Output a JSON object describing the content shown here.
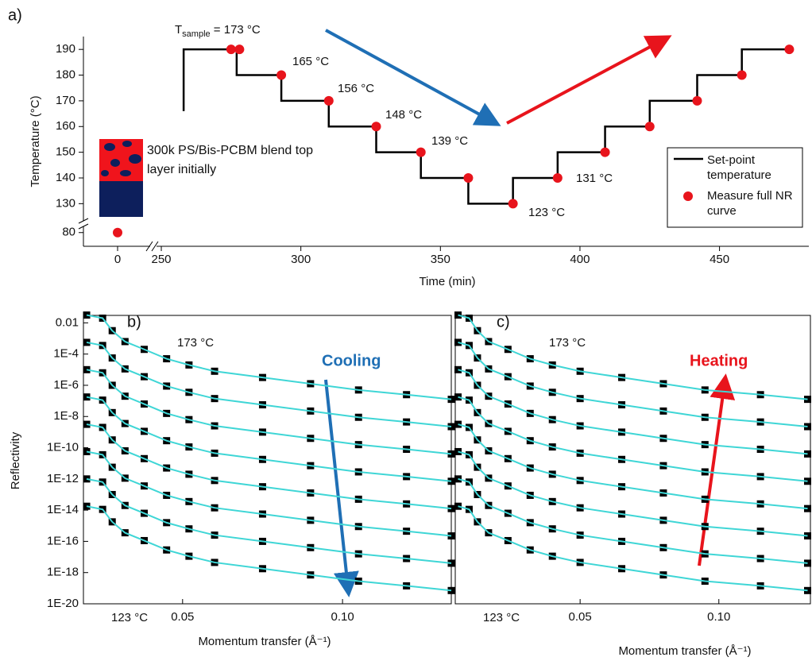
{
  "chart_data": [
    {
      "type": "step",
      "panel": "a)",
      "xlabel": "Time (min)",
      "ylabel": "Temperature (°C)",
      "xlim": [
        [
          -12,
          12
        ],
        [
          248,
          482
        ]
      ],
      "ylim": [
        [
          75,
          83
        ],
        [
          123,
          195
        ]
      ],
      "xticks": [
        0,
        250,
        300,
        350,
        400,
        450
      ],
      "yticks": [
        80,
        130,
        140,
        150,
        160,
        170,
        180,
        190
      ],
      "series": [
        {
          "name": "Set-point temperature",
          "color": "#000000",
          "x": [
            258,
            258,
            277,
            277,
            293,
            293,
            310,
            310,
            327,
            327,
            343,
            343,
            360,
            360,
            376,
            376,
            392,
            392,
            409,
            409,
            425,
            425,
            442,
            442,
            458,
            458,
            475
          ],
          "values": [
            166,
            190,
            190,
            180,
            180,
            170,
            170,
            160,
            160,
            150,
            150,
            140,
            140,
            130,
            130,
            140,
            140,
            150,
            150,
            160,
            160,
            170,
            170,
            180,
            180,
            190,
            190
          ]
        },
        {
          "name": "Measure full NR curve",
          "color": "#e8141c",
          "x": [
            0,
            275,
            278,
            293,
            310,
            327,
            343,
            360,
            376,
            392,
            409,
            425,
            442,
            458,
            475
          ],
          "values": [
            80,
            190,
            190,
            180,
            170,
            160,
            150,
            140,
            130,
            140,
            150,
            160,
            170,
            180,
            190
          ]
        }
      ],
      "sample_label": {
        "main": "T",
        "sub": "sample",
        "rest": " = 173 °C"
      },
      "annotations": [
        "165 °C",
        "156 °C",
        "148 °C",
        "139 °C",
        "123 °C",
        "131 °C"
      ],
      "inset": "300k PS/Bis-PCBM blend top layer initially"
    },
    {
      "type": "line",
      "panel": "b)",
      "xlabel": "Momentum transfer (Å⁻¹)",
      "ylabel": "Reflectivity",
      "ylog": true,
      "marker_color": "#000000",
      "line_color": "#3fd6d6",
      "xlim": [
        0.019,
        0.134
      ],
      "ylim": [
        1e-20,
        0.03
      ],
      "xticks": [
        0.05,
        {
          "value": 0.1,
          "label": "0.10"
        }
      ],
      "yticks": [
        0.01,
        {
          "value": 0.0001,
          "label": "1E-4"
        },
        {
          "value": 1e-06,
          "label": "1E-6"
        },
        {
          "value": 1e-08,
          "label": "1E-8"
        },
        {
          "value": 1e-10,
          "label": "1E-10"
        },
        {
          "value": 1e-12,
          "label": "1E-12"
        },
        {
          "value": 1e-14,
          "label": "1E-14"
        },
        {
          "value": 1e-16,
          "label": "1E-16"
        },
        {
          "value": 1e-18,
          "label": "1E-18"
        },
        {
          "value": 1e-20,
          "label": "1E-20"
        }
      ],
      "x": [
        0.02,
        0.025,
        0.028,
        0.032,
        0.038,
        0.045,
        0.052,
        0.06,
        0.075,
        0.09,
        0.105,
        0.12,
        0.134
      ],
      "series": [
        {
          "values": [
            0.0316,
            0.02,
            0.00316,
            0.000631,
            0.0002,
            5.01e-05,
            2e-05,
            7.94e-06,
            3.16e-06,
            1.26e-06,
            5.01e-07,
            2.51e-07,
            1.26e-07
          ]
        },
        {
          "values": [
            0.000562,
            0.000355,
            5.62e-05,
            1.12e-05,
            3.55e-06,
            8.91e-07,
            3.55e-07,
            1.41e-07,
            5.62e-08,
            2.24e-08,
            8.91e-09,
            4.47e-09,
            2.24e-09
          ]
        },
        {
          "values": [
            1e-05,
            6.31e-06,
            1e-06,
            2e-07,
            6.31e-08,
            1.58e-08,
            6.31e-09,
            2.51e-09,
            1e-09,
            3.98e-10,
            1.58e-10,
            7.94e-11,
            3.98e-11
          ]
        },
        {
          "values": [
            1.78e-07,
            1.12e-07,
            1.78e-08,
            3.55e-09,
            1.12e-09,
            2.82e-10,
            1.12e-10,
            4.47e-11,
            1.78e-11,
            7.08e-12,
            2.82e-12,
            1.41e-12,
            7.08e-13
          ]
        },
        {
          "values": [
            3.16e-09,
            2e-09,
            3.16e-10,
            6.31e-11,
            2e-11,
            5.01e-12,
            2e-12,
            7.94e-13,
            3.16e-13,
            1.26e-13,
            5.01e-14,
            2.51e-14,
            1.26e-14
          ]
        },
        {
          "values": [
            5.62e-11,
            3.55e-11,
            5.62e-12,
            1.12e-12,
            3.55e-13,
            8.91e-14,
            3.55e-14,
            1.41e-14,
            5.62e-15,
            2.24e-15,
            8.91e-16,
            4.47e-16,
            2.24e-16
          ]
        },
        {
          "values": [
            1e-12,
            6.31e-13,
            1e-13,
            2e-14,
            6.31e-15,
            1.58e-15,
            6.31e-16,
            2.51e-16,
            1e-16,
            3.98e-17,
            1.58e-17,
            7.94e-18,
            3.98e-18
          ]
        },
        {
          "values": [
            1.78e-14,
            1.12e-14,
            1.78e-15,
            3.55e-16,
            1.12e-16,
            2.82e-17,
            1.12e-17,
            4.47e-18,
            1.78e-18,
            7.08e-19,
            2.82e-19,
            1.41e-19,
            7.08e-20
          ]
        }
      ],
      "annotations": [
        "173 °C",
        "123 °C",
        "Cooling"
      ]
    },
    {
      "type": "line",
      "panel": "c)",
      "xlabel": "Momentum transfer (Å⁻¹)",
      "ylog": true,
      "marker_color": "#000000",
      "line_color": "#3fd6d6",
      "xlim": [
        0.005,
        0.133
      ],
      "ylim": [
        1e-20,
        0.03
      ],
      "xticks": [
        0.05,
        {
          "value": 0.1,
          "label": "0.10"
        }
      ],
      "x": [
        0.006,
        0.01,
        0.013,
        0.017,
        0.024,
        0.032,
        0.04,
        0.05,
        0.065,
        0.08,
        0.095,
        0.115,
        0.132
      ],
      "series": [
        {
          "values": [
            0.0316,
            0.02,
            0.00316,
            0.000631,
            0.0002,
            5.01e-05,
            2e-05,
            7.94e-06,
            3.16e-06,
            1.26e-06,
            5.01e-07,
            2.51e-07,
            1.26e-07
          ]
        },
        {
          "values": [
            0.000562,
            0.000355,
            5.62e-05,
            1.12e-05,
            3.55e-06,
            8.91e-07,
            3.55e-07,
            1.41e-07,
            5.62e-08,
            2.24e-08,
            8.91e-09,
            4.47e-09,
            2.24e-09
          ]
        },
        {
          "values": [
            1e-05,
            6.31e-06,
            1e-06,
            2e-07,
            6.31e-08,
            1.58e-08,
            6.31e-09,
            2.51e-09,
            1e-09,
            3.98e-10,
            1.58e-10,
            7.94e-11,
            3.98e-11
          ]
        },
        {
          "values": [
            1.78e-07,
            1.12e-07,
            1.78e-08,
            3.55e-09,
            1.12e-09,
            2.82e-10,
            1.12e-10,
            4.47e-11,
            1.78e-11,
            7.08e-12,
            2.82e-12,
            1.41e-12,
            7.08e-13
          ]
        },
        {
          "values": [
            3.16e-09,
            2e-09,
            3.16e-10,
            6.31e-11,
            2e-11,
            5.01e-12,
            2e-12,
            7.94e-13,
            3.16e-13,
            1.26e-13,
            5.01e-14,
            2.51e-14,
            1.26e-14
          ]
        },
        {
          "values": [
            5.62e-11,
            3.55e-11,
            5.62e-12,
            1.12e-12,
            3.55e-13,
            8.91e-14,
            3.55e-14,
            1.41e-14,
            5.62e-15,
            2.24e-15,
            8.91e-16,
            4.47e-16,
            2.24e-16
          ]
        },
        {
          "values": [
            1e-12,
            6.31e-13,
            1e-13,
            2e-14,
            6.31e-15,
            1.58e-15,
            6.31e-16,
            2.51e-16,
            1e-16,
            3.98e-17,
            1.58e-17,
            7.94e-18,
            3.98e-18
          ]
        },
        {
          "values": [
            1.78e-14,
            1.12e-14,
            1.78e-15,
            3.55e-16,
            1.12e-16,
            2.82e-17,
            1.12e-17,
            4.47e-18,
            1.78e-18,
            7.08e-19,
            2.82e-19,
            1.41e-19,
            7.08e-20
          ]
        }
      ],
      "annotations": [
        "173 °C",
        "123 °C",
        "Heating"
      ]
    }
  ]
}
